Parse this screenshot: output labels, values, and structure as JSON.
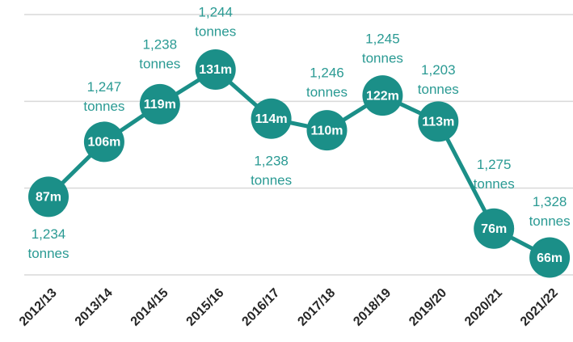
{
  "chart_data": {
    "type": "line",
    "categories": [
      "2012/13",
      "2013/14",
      "2014/15",
      "2015/16",
      "2016/17",
      "2017/18",
      "2018/19",
      "2019/20",
      "2020/21",
      "2021/22"
    ],
    "series": [
      {
        "color": "#1b8f88",
        "values": [
          87,
          106,
          119,
          131,
          114,
          110,
          122,
          113,
          76,
          66
        ],
        "value_labels": [
          "87m",
          "106m",
          "119m",
          "131m",
          "114m",
          "110m",
          "122m",
          "113m",
          "76m",
          "66m"
        ]
      }
    ],
    "annotations": [
      [
        "1,234",
        "tonnes"
      ],
      [
        "1,247",
        "tonnes"
      ],
      [
        "1,238",
        "tonnes"
      ],
      [
        "1,244",
        "tonnes"
      ],
      [
        "1,238",
        "tonnes"
      ],
      [
        "1,246",
        "tonnes"
      ],
      [
        "1,245",
        "tonnes"
      ],
      [
        "1,203",
        "tonnes"
      ],
      [
        "1,275",
        "tonnes"
      ],
      [
        "1,328",
        "tonnes"
      ]
    ],
    "annotation_color": "#2a9a93",
    "ylim": [
      60,
      150
    ],
    "yticks": [
      60,
      90,
      120,
      150
    ],
    "grid": true
  }
}
